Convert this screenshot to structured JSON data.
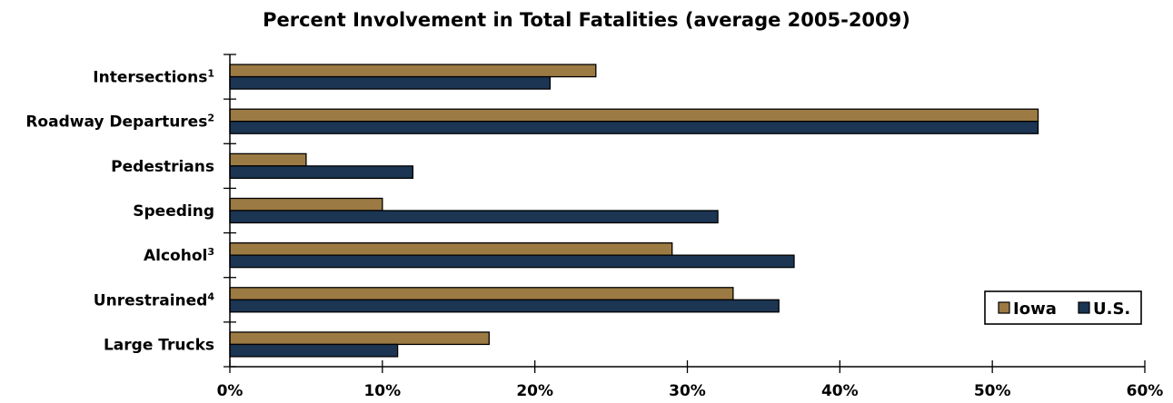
{
  "chart_data": {
    "type": "bar",
    "orientation": "horizontal",
    "title": "Percent Involvement in Total Fatalities (average 2005-2009)",
    "xlabel": "",
    "ylabel": "",
    "xlim": [
      0,
      60
    ],
    "x_ticks": [
      "0%",
      "10%",
      "20%",
      "30%",
      "40%",
      "50%",
      "60%"
    ],
    "categories": [
      {
        "label": "Intersections",
        "sup": "1"
      },
      {
        "label": "Roadway Departures",
        "sup": "2"
      },
      {
        "label": "Pedestrians",
        "sup": ""
      },
      {
        "label": "Speeding",
        "sup": ""
      },
      {
        "label": "Alcohol",
        "sup": "3"
      },
      {
        "label": "Unrestrained",
        "sup": "4"
      },
      {
        "label": "Large Trucks",
        "sup": ""
      }
    ],
    "series": [
      {
        "name": "Iowa",
        "color": "#9C7A43",
        "values": [
          24,
          53,
          5,
          10,
          29,
          33,
          17
        ]
      },
      {
        "name": "U.S.",
        "color": "#1B3553",
        "values": [
          21,
          53,
          12,
          32,
          37,
          36,
          11
        ]
      }
    ],
    "grid": false,
    "legend_position": "bottom-right"
  }
}
